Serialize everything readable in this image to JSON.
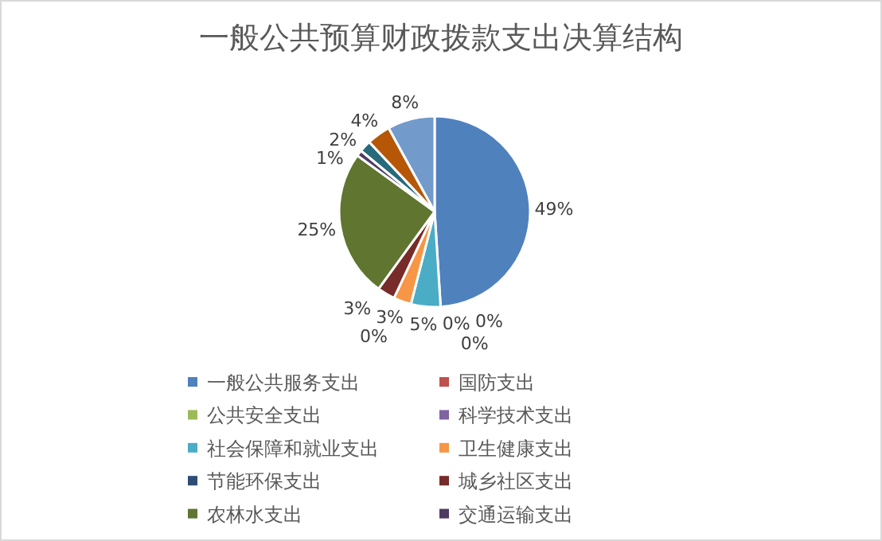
{
  "chart_data": {
    "type": "pie",
    "title": "一般公共预算财政拨款支出决算结构",
    "categories": [
      "一般公共服务支出",
      "国防支出",
      "公共安全支出",
      "科学技术支出",
      "社会保障和就业支出",
      "卫生健康支出",
      "节能环保支出",
      "城乡社区支出",
      "农林水支出",
      "交通运输支出",
      null,
      null,
      null
    ],
    "values": [
      49,
      0,
      0,
      0,
      5,
      3,
      0,
      3,
      25,
      1,
      2,
      4,
      8
    ],
    "colors": [
      "#4f81bd",
      "#c0504d",
      "#9bbb59",
      "#8064a2",
      "#4bacc6",
      "#f79646",
      "#2c4d75",
      "#772c2a",
      "#5f7530",
      "#4d3b62",
      "#276a7c",
      "#b65708",
      "#729aca"
    ],
    "value_labels": [
      "49%",
      "0%",
      "0%",
      "0%",
      "5%",
      "3%",
      "0%",
      "3%",
      "25%",
      "1%",
      "2%",
      "4%",
      "8%"
    ],
    "legend": "bottom"
  }
}
